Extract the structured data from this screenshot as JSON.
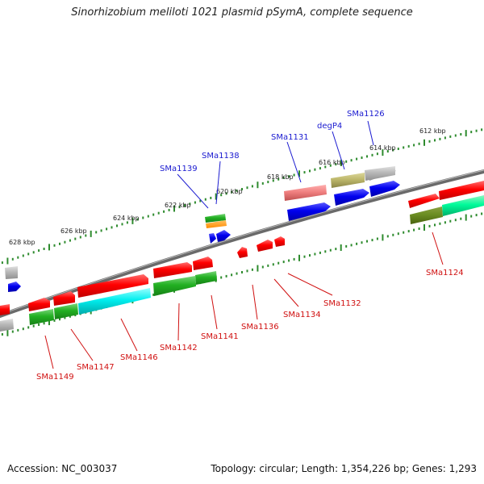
{
  "title": "Sinorhizobium meliloti 1021 plasmid pSymA, complete sequence",
  "footer": {
    "accession": "Accession: NC_003037",
    "topology": "Topology: circular; Length: 1,354,226 bp; Genes: 1,293"
  },
  "ticks": [
    "612 kbp",
    "614 kbp",
    "616 kbp",
    "618 kbp",
    "620 kbp",
    "622 kbp",
    "624 kbp",
    "626 kbp",
    "628 kbp"
  ],
  "top_labels": [
    "SMa1126",
    "degP4",
    "SMa1131",
    "SMa1138",
    "SMa1139"
  ],
  "bottom_labels": [
    "SMa1124",
    "SMa1132",
    "SMa1134",
    "SMa1136",
    "SMa1141",
    "SMa1142",
    "SMa1146",
    "SMa1147",
    "SMa1149"
  ],
  "colors": {
    "backbone": "#808080",
    "tick_dots": "#2e8b2e",
    "top_label": "#1a1ad0",
    "bottom_label": "#d01010"
  }
}
